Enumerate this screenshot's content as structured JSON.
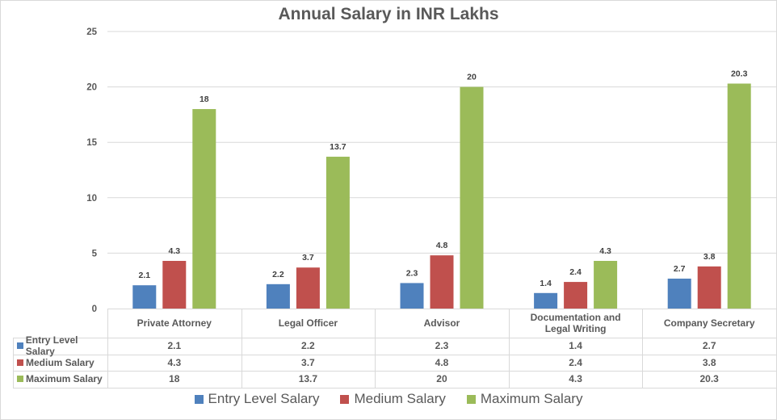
{
  "chart_data": {
    "type": "bar",
    "title": "Annual Salary in INR Lakhs",
    "xlabel": "",
    "ylabel": "",
    "ylim": [
      0,
      25
    ],
    "yticks": [
      "0",
      "5",
      "10",
      "15",
      "20",
      "25"
    ],
    "ytick_values": [
      0,
      5,
      10,
      15,
      20,
      25
    ],
    "grid": true,
    "legend_position": "bottom",
    "data_table": true,
    "categories": [
      "Private Attorney",
      "Legal Officer",
      "Advisor",
      "Documentation and Legal Writing",
      "Company Secretary"
    ],
    "category_lines": [
      [
        "Private Attorney"
      ],
      [
        "Legal Officer"
      ],
      [
        "Advisor"
      ],
      [
        "Documentation and",
        "Legal Writing"
      ],
      [
        "Company Secretary"
      ]
    ],
    "series": [
      {
        "name": "Entry Level Salary",
        "color": "#4f81bd",
        "values": [
          2.1,
          2.2,
          2.3,
          1.4,
          2.7
        ],
        "labels": [
          "2.1",
          "2.2",
          "2.3",
          "1.4",
          "2.7"
        ]
      },
      {
        "name": "Medium Salary",
        "color": "#c0504d",
        "values": [
          4.3,
          3.7,
          4.8,
          2.4,
          3.8
        ],
        "labels": [
          "4.3",
          "3.7",
          "4.8",
          "2.4",
          "3.8"
        ]
      },
      {
        "name": "Maximum Salary",
        "color": "#9bbb59",
        "values": [
          18,
          13.7,
          20,
          4.3,
          20.3
        ],
        "labels": [
          "18",
          "13.7",
          "20",
          "4.3",
          "20.3"
        ]
      }
    ]
  }
}
